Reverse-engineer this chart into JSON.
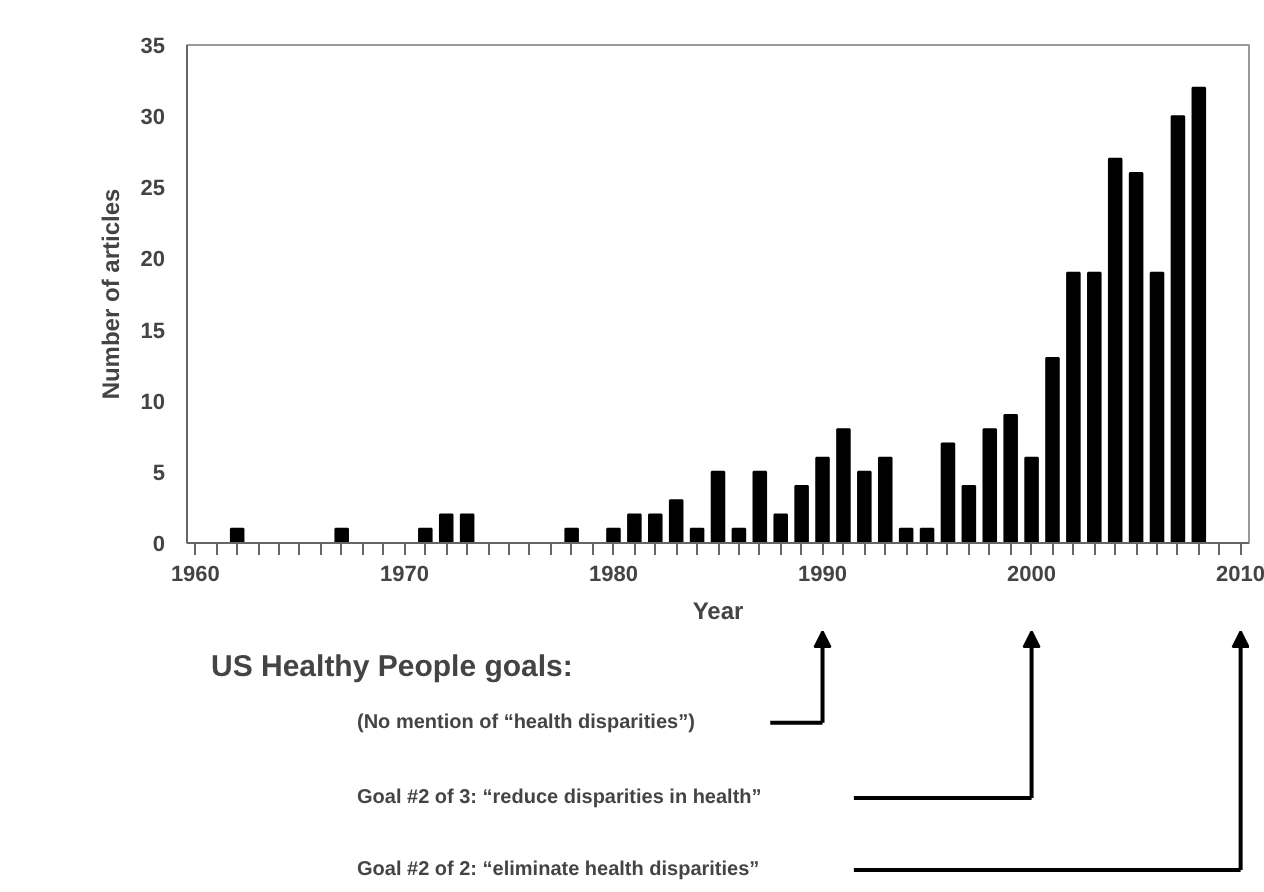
{
  "chart_data": {
    "type": "bar",
    "xlabel": "Year",
    "ylabel": "Number of articles",
    "x": [
      1962,
      1967,
      1971,
      1972,
      1973,
      1978,
      1980,
      1981,
      1982,
      1983,
      1984,
      1985,
      1986,
      1987,
      1988,
      1989,
      1990,
      1991,
      1992,
      1993,
      1994,
      1995,
      1996,
      1997,
      1998,
      1999,
      2000,
      2001,
      2002,
      2003,
      2004,
      2005,
      2006,
      2007,
      2008
    ],
    "values": [
      1,
      1,
      1,
      2,
      2,
      1,
      1,
      2,
      2,
      3,
      1,
      5,
      1,
      5,
      2,
      4,
      6,
      8,
      5,
      6,
      1,
      1,
      7,
      4,
      8,
      9,
      6,
      13,
      19,
      19,
      27,
      26,
      19,
      30,
      32
    ],
    "color": "#000000",
    "xlim": [
      1959.6,
      2010.4
    ],
    "xticks": [
      1960,
      {
        "value": 1961,
        "label": null
      },
      {
        "value": 1962,
        "label": null
      },
      {
        "value": 1963,
        "label": null
      },
      {
        "value": 1964,
        "label": null
      },
      {
        "value": 1965,
        "label": null
      },
      {
        "value": 1966,
        "label": null
      },
      {
        "value": 1967,
        "label": null
      },
      {
        "value": 1968,
        "label": null
      },
      {
        "value": 1969,
        "label": null
      },
      1970,
      {
        "value": 1971,
        "label": null
      },
      {
        "value": 1972,
        "label": null
      },
      {
        "value": 1973,
        "label": null
      },
      {
        "value": 1974,
        "label": null
      },
      {
        "value": 1975,
        "label": null
      },
      {
        "value": 1976,
        "label": null
      },
      {
        "value": 1977,
        "label": null
      },
      {
        "value": 1978,
        "label": null
      },
      {
        "value": 1979,
        "label": null
      },
      1980,
      {
        "value": 1981,
        "label": null
      },
      {
        "value": 1982,
        "label": null
      },
      {
        "value": 1983,
        "label": null
      },
      {
        "value": 1984,
        "label": null
      },
      {
        "value": 1985,
        "label": null
      },
      {
        "value": 1986,
        "label": null
      },
      {
        "value": 1987,
        "label": null
      },
      {
        "value": 1988,
        "label": null
      },
      {
        "value": 1989,
        "label": null
      },
      1990,
      {
        "value": 1991,
        "label": null
      },
      {
        "value": 1992,
        "label": null
      },
      {
        "value": 1993,
        "label": null
      },
      {
        "value": 1994,
        "label": null
      },
      {
        "value": 1995,
        "label": null
      },
      {
        "value": 1996,
        "label": null
      },
      {
        "value": 1997,
        "label": null
      },
      {
        "value": 1998,
        "label": null
      },
      {
        "value": 1999,
        "label": null
      },
      2000,
      {
        "value": 2001,
        "label": null
      },
      {
        "value": 2002,
        "label": null
      },
      {
        "value": 2003,
        "label": null
      },
      {
        "value": 2004,
        "label": null
      },
      {
        "value": 2005,
        "label": null
      },
      {
        "value": 2006,
        "label": null
      },
      {
        "value": 2007,
        "label": null
      },
      {
        "value": 2008,
        "label": null
      },
      {
        "value": 2009,
        "label": null
      },
      2010
    ],
    "ylim": [
      0,
      35
    ],
    "yticks": [
      0,
      5,
      10,
      15,
      20,
      25,
      30,
      35
    ],
    "grid": false,
    "annotations": [
      "US Healthy People goals:",
      "(No mention of “health disparities”)",
      "Goal #2 of 3: “reduce disparities in health”",
      "Goal #2 of 2: “eliminate health disparities”"
    ]
  }
}
